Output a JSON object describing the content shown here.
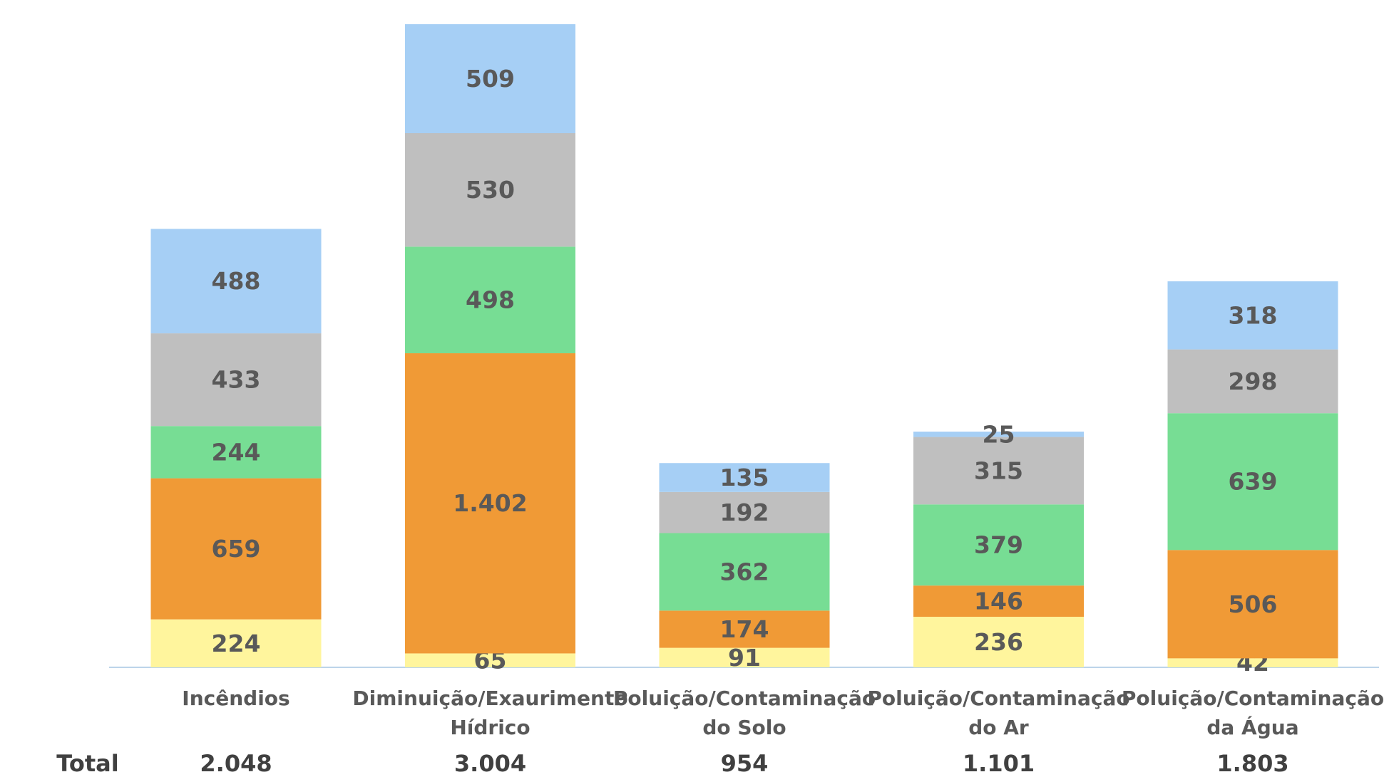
{
  "chart_data": {
    "type": "stacked_bar",
    "categories": [
      [
        "Incêndios"
      ],
      [
        "Diminuição/Exaurimento",
        "Hídrico"
      ],
      [
        "Poluição/Contaminação",
        "do Solo"
      ],
      [
        "Poluição/Contaminação",
        "do Ar"
      ],
      [
        "Poluição/Contaminação",
        "da Água"
      ]
    ],
    "series": [
      {
        "color": "#fff59d",
        "values": [
          224,
          65,
          91,
          236,
          42
        ]
      },
      {
        "color": "#f09a36",
        "values": [
          659,
          1402,
          174,
          146,
          506
        ],
        "value_labels": [
          "659",
          "1.402",
          "174",
          "146",
          "506"
        ]
      },
      {
        "color": "#77dd94",
        "values": [
          244,
          498,
          362,
          379,
          639
        ]
      },
      {
        "color": "#bfbfbf",
        "values": [
          433,
          530,
          192,
          315,
          298
        ]
      },
      {
        "color": "#a6cff5",
        "values": [
          488,
          509,
          135,
          25,
          318
        ]
      }
    ],
    "totals": {
      "label": "Total",
      "values": [
        2048,
        3004,
        954,
        1101,
        1803
      ],
      "value_labels": [
        "2.048",
        "3.004",
        "954",
        "1.101",
        "1.803"
      ]
    }
  }
}
